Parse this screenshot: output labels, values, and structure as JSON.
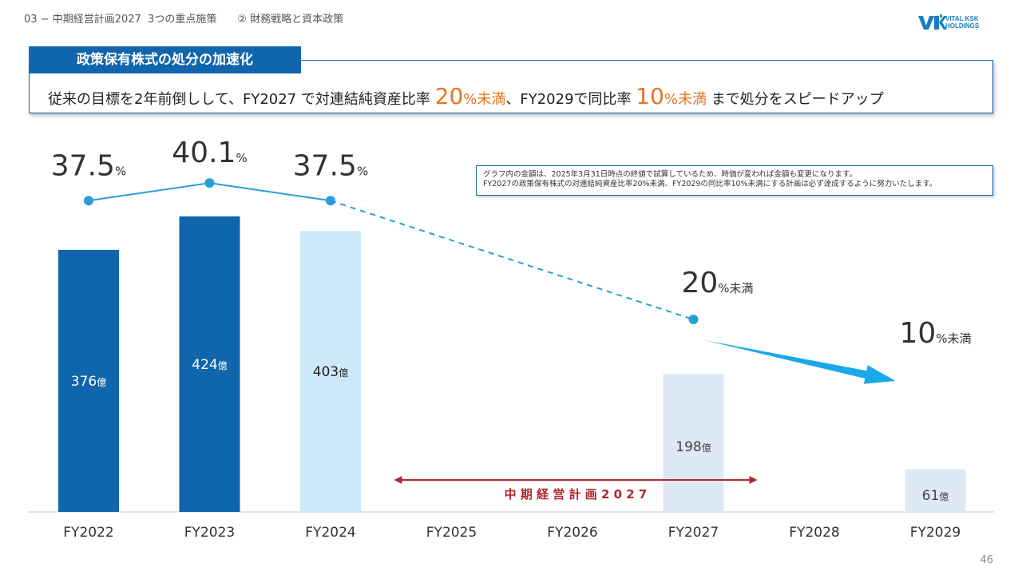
{
  "header": {
    "crumb": "03 − 中期経営計画2027  3つの重点施策　　② 財務戦略と資本政策"
  },
  "logo": {
    "line1": "VITAL KSK",
    "line2": "HOLDINGS"
  },
  "tag": {
    "label": "政策保有株式の処分の加速化"
  },
  "banner": {
    "part1": "従来の目標を2年前倒しして、FY2027 で対連結純資産比率 ",
    "v1": "20",
    "u1": "%未満",
    "part2": "、FY2029で同比率 ",
    "v2": "10",
    "u2": "%未満",
    "part3": " まで処分をスピードアップ"
  },
  "note": {
    "line1": "グラフ内の金額は、2025年3月31日時点の終値で試算しているため、時価が変われば金額も変更になります。",
    "line2": "FY2027の政策保有株式の対連結純資産比率20%未満、FY2029の同比率10%未満にする計画は必ず達成するように努力いたします。"
  },
  "plan_label": "中 期 経 営 計 画 2 0 2 7",
  "page_number": "46",
  "chart_data": {
    "type": "bar",
    "categories": [
      "FY2022",
      "FY2023",
      "FY2024",
      "FY2025",
      "FY2026",
      "FY2027",
      "FY2028",
      "FY2029"
    ],
    "bars": [
      {
        "category": "FY2022",
        "value": 376,
        "label": "376",
        "unit": "億",
        "color": "#1066ad",
        "label_color": "#ffffff"
      },
      {
        "category": "FY2023",
        "value": 424,
        "label": "424",
        "unit": "億",
        "color": "#1066ad",
        "label_color": "#ffffff"
      },
      {
        "category": "FY2024",
        "value": 403,
        "label": "403",
        "unit": "億",
        "color": "#cde8f8",
        "label_color": "#222222"
      },
      {
        "category": "FY2027",
        "value": 198,
        "label": "198",
        "unit": "億",
        "color": "#dde9f5",
        "label_color": "#444444"
      },
      {
        "category": "FY2029",
        "value": 61,
        "label": "61",
        "unit": "億",
        "color": "#dde9f5",
        "label_color": "#444444"
      }
    ],
    "ratio_points": [
      {
        "category": "FY2022",
        "value": 37.5,
        "label": "37.5",
        "unit": "%"
      },
      {
        "category": "FY2023",
        "value": 40.1,
        "label": "40.1",
        "unit": "%"
      },
      {
        "category": "FY2024",
        "value": 37.5,
        "label": "37.5",
        "unit": "%"
      },
      {
        "category": "FY2027",
        "value": 20,
        "label": "20",
        "unit": "%未満"
      },
      {
        "category": "FY2029",
        "value": 10,
        "label": "10",
        "unit": "%未満"
      }
    ],
    "plan_range": [
      "FY2025",
      "FY2027"
    ],
    "colors": {
      "bar_dark": "#1066ad",
      "line": "#2a9ed8",
      "arrow": "#1ba8e8",
      "plan": "#b0272e",
      "accent": "#e9741f"
    }
  }
}
